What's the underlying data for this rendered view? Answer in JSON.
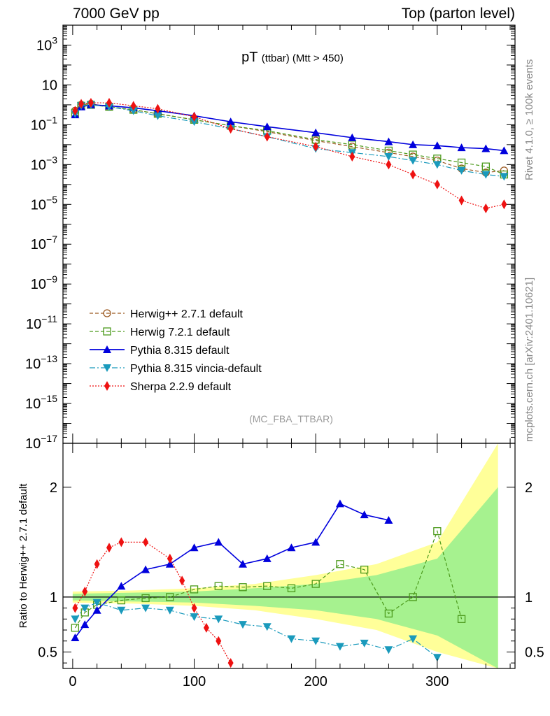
{
  "header": {
    "left": "7000 GeV pp",
    "right": "Top (parton level)"
  },
  "side_labels": {
    "version": "Rivet 4.1.0, ≥ 100k events",
    "source": "mcplots.cern.ch [arXiv:2401.10621]"
  },
  "chart_data": {
    "type": "line",
    "title_main": "pT",
    "title_sub": "(ttbar)",
    "title_cut": "(Mtt > 450)",
    "analysis_tag": "(MC_FBA_TTBAR)",
    "main_panel": {
      "yscale": "log",
      "ylim_exp": [
        -17,
        4
      ],
      "ytick_labels": [
        {
          "exp": 3,
          "text": "10",
          "sup": "3"
        },
        {
          "exp": 1,
          "text": "10",
          "sup": ""
        },
        {
          "exp": -1,
          "text": "10",
          "sup": "−1"
        },
        {
          "exp": -3,
          "text": "10",
          "sup": "−3"
        },
        {
          "exp": -5,
          "text": "10",
          "sup": "−5"
        },
        {
          "exp": -7,
          "text": "10",
          "sup": "−7"
        },
        {
          "exp": -9,
          "text": "10",
          "sup": "−9"
        },
        {
          "exp": -11,
          "text": "10",
          "sup": "−11"
        },
        {
          "exp": -13,
          "text": "10",
          "sup": "−13"
        },
        {
          "exp": -15,
          "text": "10",
          "sup": "−15"
        },
        {
          "exp": -17,
          "text": "10",
          "sup": "−17"
        }
      ]
    },
    "ratio_panel": {
      "ylabel": "Ratio to Herwig++ 2.7.1 default",
      "ylim": [
        0.35,
        2.4
      ],
      "ytick_labels": [
        "0.5",
        "1",
        "2"
      ],
      "ytick_values": [
        0.5,
        1,
        2
      ]
    },
    "xlim": [
      -8,
      364
    ],
    "xtick_labels": [
      "0",
      "100",
      "200",
      "300"
    ],
    "xtick_values": [
      0,
      100,
      200,
      300
    ],
    "legend": [
      {
        "label": "Herwig++ 2.7.1 default",
        "color": "#9c5a22",
        "marker": "circle-open",
        "dash": "5,3"
      },
      {
        "label": "Herwig 7.2.1 default",
        "color": "#4c9a1c",
        "marker": "square-open",
        "dash": "5,3"
      },
      {
        "label": "Pythia 8.315 default",
        "color": "#0000dd",
        "marker": "triangle-up",
        "dash": ""
      },
      {
        "label": "Pythia 8.315 vincia-default",
        "color": "#1a9abc",
        "marker": "triangle-down",
        "dash": "8,3,2,3"
      },
      {
        "label": "Sherpa 2.2.9 default",
        "color": "#ee1111",
        "marker": "diamond",
        "dash": "2,2"
      }
    ],
    "series": [
      {
        "name": "Herwig++ 2.7.1 default",
        "x": [
          2,
          7,
          15,
          30,
          50,
          70,
          100,
          130,
          160,
          200,
          230,
          260,
          280,
          300,
          320,
          340,
          355
        ],
        "log10_y": [
          -0.3,
          0.0,
          0.05,
          -0.1,
          -0.25,
          -0.45,
          -0.75,
          -1.05,
          -1.35,
          -1.8,
          -2.1,
          -2.4,
          -2.6,
          -2.8,
          -3.2,
          -3.4,
          -3.3
        ]
      },
      {
        "name": "Herwig 7.2.1 default",
        "x": [
          2,
          7,
          15,
          30,
          50,
          70,
          100,
          130,
          160,
          200,
          230,
          260,
          280,
          300,
          320,
          340,
          355
        ],
        "log10_y": [
          -0.4,
          -0.05,
          0.0,
          -0.1,
          -0.25,
          -0.45,
          -0.75,
          -1.05,
          -1.3,
          -1.75,
          -2.0,
          -2.3,
          -2.5,
          -2.7,
          -2.9,
          -3.1,
          -3.5
        ]
      },
      {
        "name": "Pythia 8.315 default",
        "x": [
          2,
          7,
          15,
          30,
          50,
          70,
          100,
          130,
          160,
          200,
          230,
          260,
          280,
          300,
          320,
          340,
          355
        ],
        "log10_y": [
          -0.5,
          -0.1,
          0.0,
          -0.05,
          -0.15,
          -0.3,
          -0.55,
          -0.85,
          -1.1,
          -1.4,
          -1.65,
          -1.85,
          -2.0,
          -2.05,
          -2.15,
          -2.2,
          -2.3
        ]
      },
      {
        "name": "Pythia 8.315 vincia-default",
        "x": [
          2,
          7,
          15,
          30,
          50,
          70,
          100,
          130,
          160,
          200,
          230,
          260,
          280,
          300,
          320,
          340,
          355
        ],
        "log10_y": [
          -0.45,
          -0.05,
          0.0,
          -0.1,
          -0.3,
          -0.55,
          -0.85,
          -1.2,
          -1.6,
          -2.2,
          -2.4,
          -2.6,
          -2.8,
          -3.0,
          -3.3,
          -3.5,
          -3.6
        ]
      },
      {
        "name": "Sherpa 2.2.9 default",
        "x": [
          2,
          7,
          15,
          30,
          50,
          70,
          100,
          130,
          160,
          200,
          230,
          260,
          280,
          300,
          320,
          340,
          355
        ],
        "log10_y": [
          -0.3,
          0.05,
          0.1,
          0.1,
          -0.05,
          -0.2,
          -0.6,
          -1.2,
          -1.6,
          -2.1,
          -2.6,
          -3.0,
          -3.5,
          -4.0,
          -4.8,
          -5.2,
          -5.0
        ]
      }
    ],
    "ratio_series": [
      {
        "name": "Herwig 7.2.1 default",
        "x": [
          2,
          10,
          20,
          40,
          60,
          80,
          100,
          120,
          140,
          160,
          180,
          200,
          220,
          240,
          260,
          280,
          300,
          320
        ],
        "y": [
          0.72,
          0.86,
          0.93,
          0.97,
          0.99,
          1.0,
          1.07,
          1.1,
          1.09,
          1.1,
          1.08,
          1.12,
          1.3,
          1.25,
          0.85,
          1.0,
          1.6,
          0.8
        ]
      },
      {
        "name": "Pythia 8.315 default",
        "x": [
          2,
          10,
          20,
          40,
          60,
          80,
          100,
          120,
          140,
          160,
          180,
          200,
          220,
          240,
          260
        ],
        "y": [
          0.63,
          0.75,
          0.88,
          1.1,
          1.25,
          1.3,
          1.45,
          1.5,
          1.3,
          1.35,
          1.45,
          1.5,
          1.85,
          1.75,
          1.7
        ]
      },
      {
        "name": "Pythia 8.315 vincia-default",
        "x": [
          2,
          10,
          20,
          40,
          60,
          80,
          100,
          120,
          140,
          160,
          180,
          200,
          220,
          240,
          260,
          280,
          300
        ],
        "y": [
          0.8,
          0.9,
          0.95,
          0.88,
          0.9,
          0.88,
          0.82,
          0.8,
          0.75,
          0.73,
          0.62,
          0.6,
          0.55,
          0.58,
          0.52,
          0.62,
          0.45
        ]
      },
      {
        "name": "Sherpa 2.2.9 default",
        "x": [
          2,
          10,
          20,
          30,
          40,
          60,
          80,
          90,
          100,
          110,
          120,
          130
        ],
        "y": [
          0.9,
          1.05,
          1.3,
          1.45,
          1.5,
          1.5,
          1.35,
          1.15,
          0.9,
          0.72,
          0.6,
          0.4
        ]
      }
    ],
    "uncertainty_band": {
      "x": [
        0,
        50,
        100,
        150,
        200,
        250,
        300,
        350
      ],
      "yellow_halfwidth": [
        0.05,
        0.06,
        0.08,
        0.12,
        0.2,
        0.3,
        0.5,
        1.4
      ],
      "green_halfwidth": [
        0.03,
        0.04,
        0.05,
        0.08,
        0.12,
        0.2,
        0.35,
        1.0
      ]
    }
  }
}
